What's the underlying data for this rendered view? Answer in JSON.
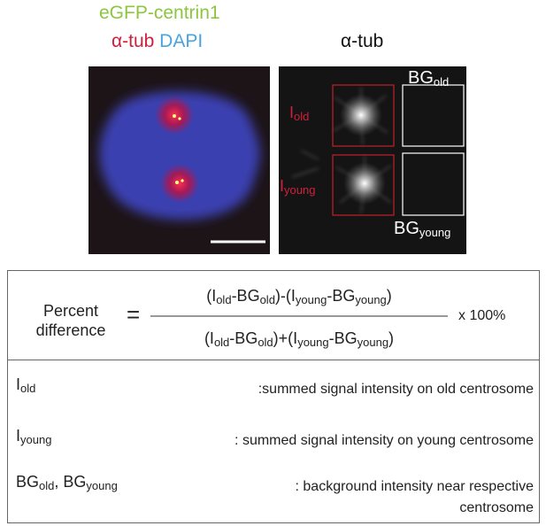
{
  "panels": {
    "left_label": {
      "line1": "eGFP-centrin1",
      "line2a": "α-tub",
      "line2b": "DAPI"
    },
    "right_label": "α-tub",
    "i_old": [
      {
        "text": "I",
        "sub": "old"
      }
    ],
    "i_young": [
      {
        "text": "I",
        "sub": "young"
      }
    ],
    "bg_old": [
      {
        "text": "BG",
        "sub": "old"
      }
    ],
    "bg_young": [
      {
        "text": "BG",
        "sub": "young"
      }
    ]
  },
  "formula": {
    "label": [
      "Percent",
      "difference"
    ],
    "equals": "=",
    "numerator": [
      {
        "text": "(I",
        "sub": "old"
      },
      {
        "text": "-BG",
        "sub": "old"
      },
      {
        "text": ")-(I",
        "sub": "young"
      },
      {
        "text": "-BG",
        "sub": "young"
      },
      {
        "text": ")"
      }
    ],
    "denominator": [
      {
        "text": "(I",
        "sub": "old"
      },
      {
        "text": "-BG",
        "sub": "old"
      },
      {
        "text": ")+(I",
        "sub": "young"
      },
      {
        "text": "-BG",
        "sub": "young"
      },
      {
        "text": ")"
      }
    ],
    "factor": "x 100%"
  },
  "definitions": [
    {
      "term": [
        {
          "text": "I",
          "sub": "old"
        }
      ],
      "desc": ":summed signal intensity on old centrosome"
    },
    {
      "term": [
        {
          "text": "I",
          "sub": "young"
        }
      ],
      "desc": ": summed signal intensity on young centrosome"
    },
    {
      "term": [
        {
          "text": "BG",
          "sub": "old"
        },
        {
          "text": ", BG",
          "sub": "young"
        }
      ],
      "desc": ": background intensity near respective centrosome"
    }
  ]
}
